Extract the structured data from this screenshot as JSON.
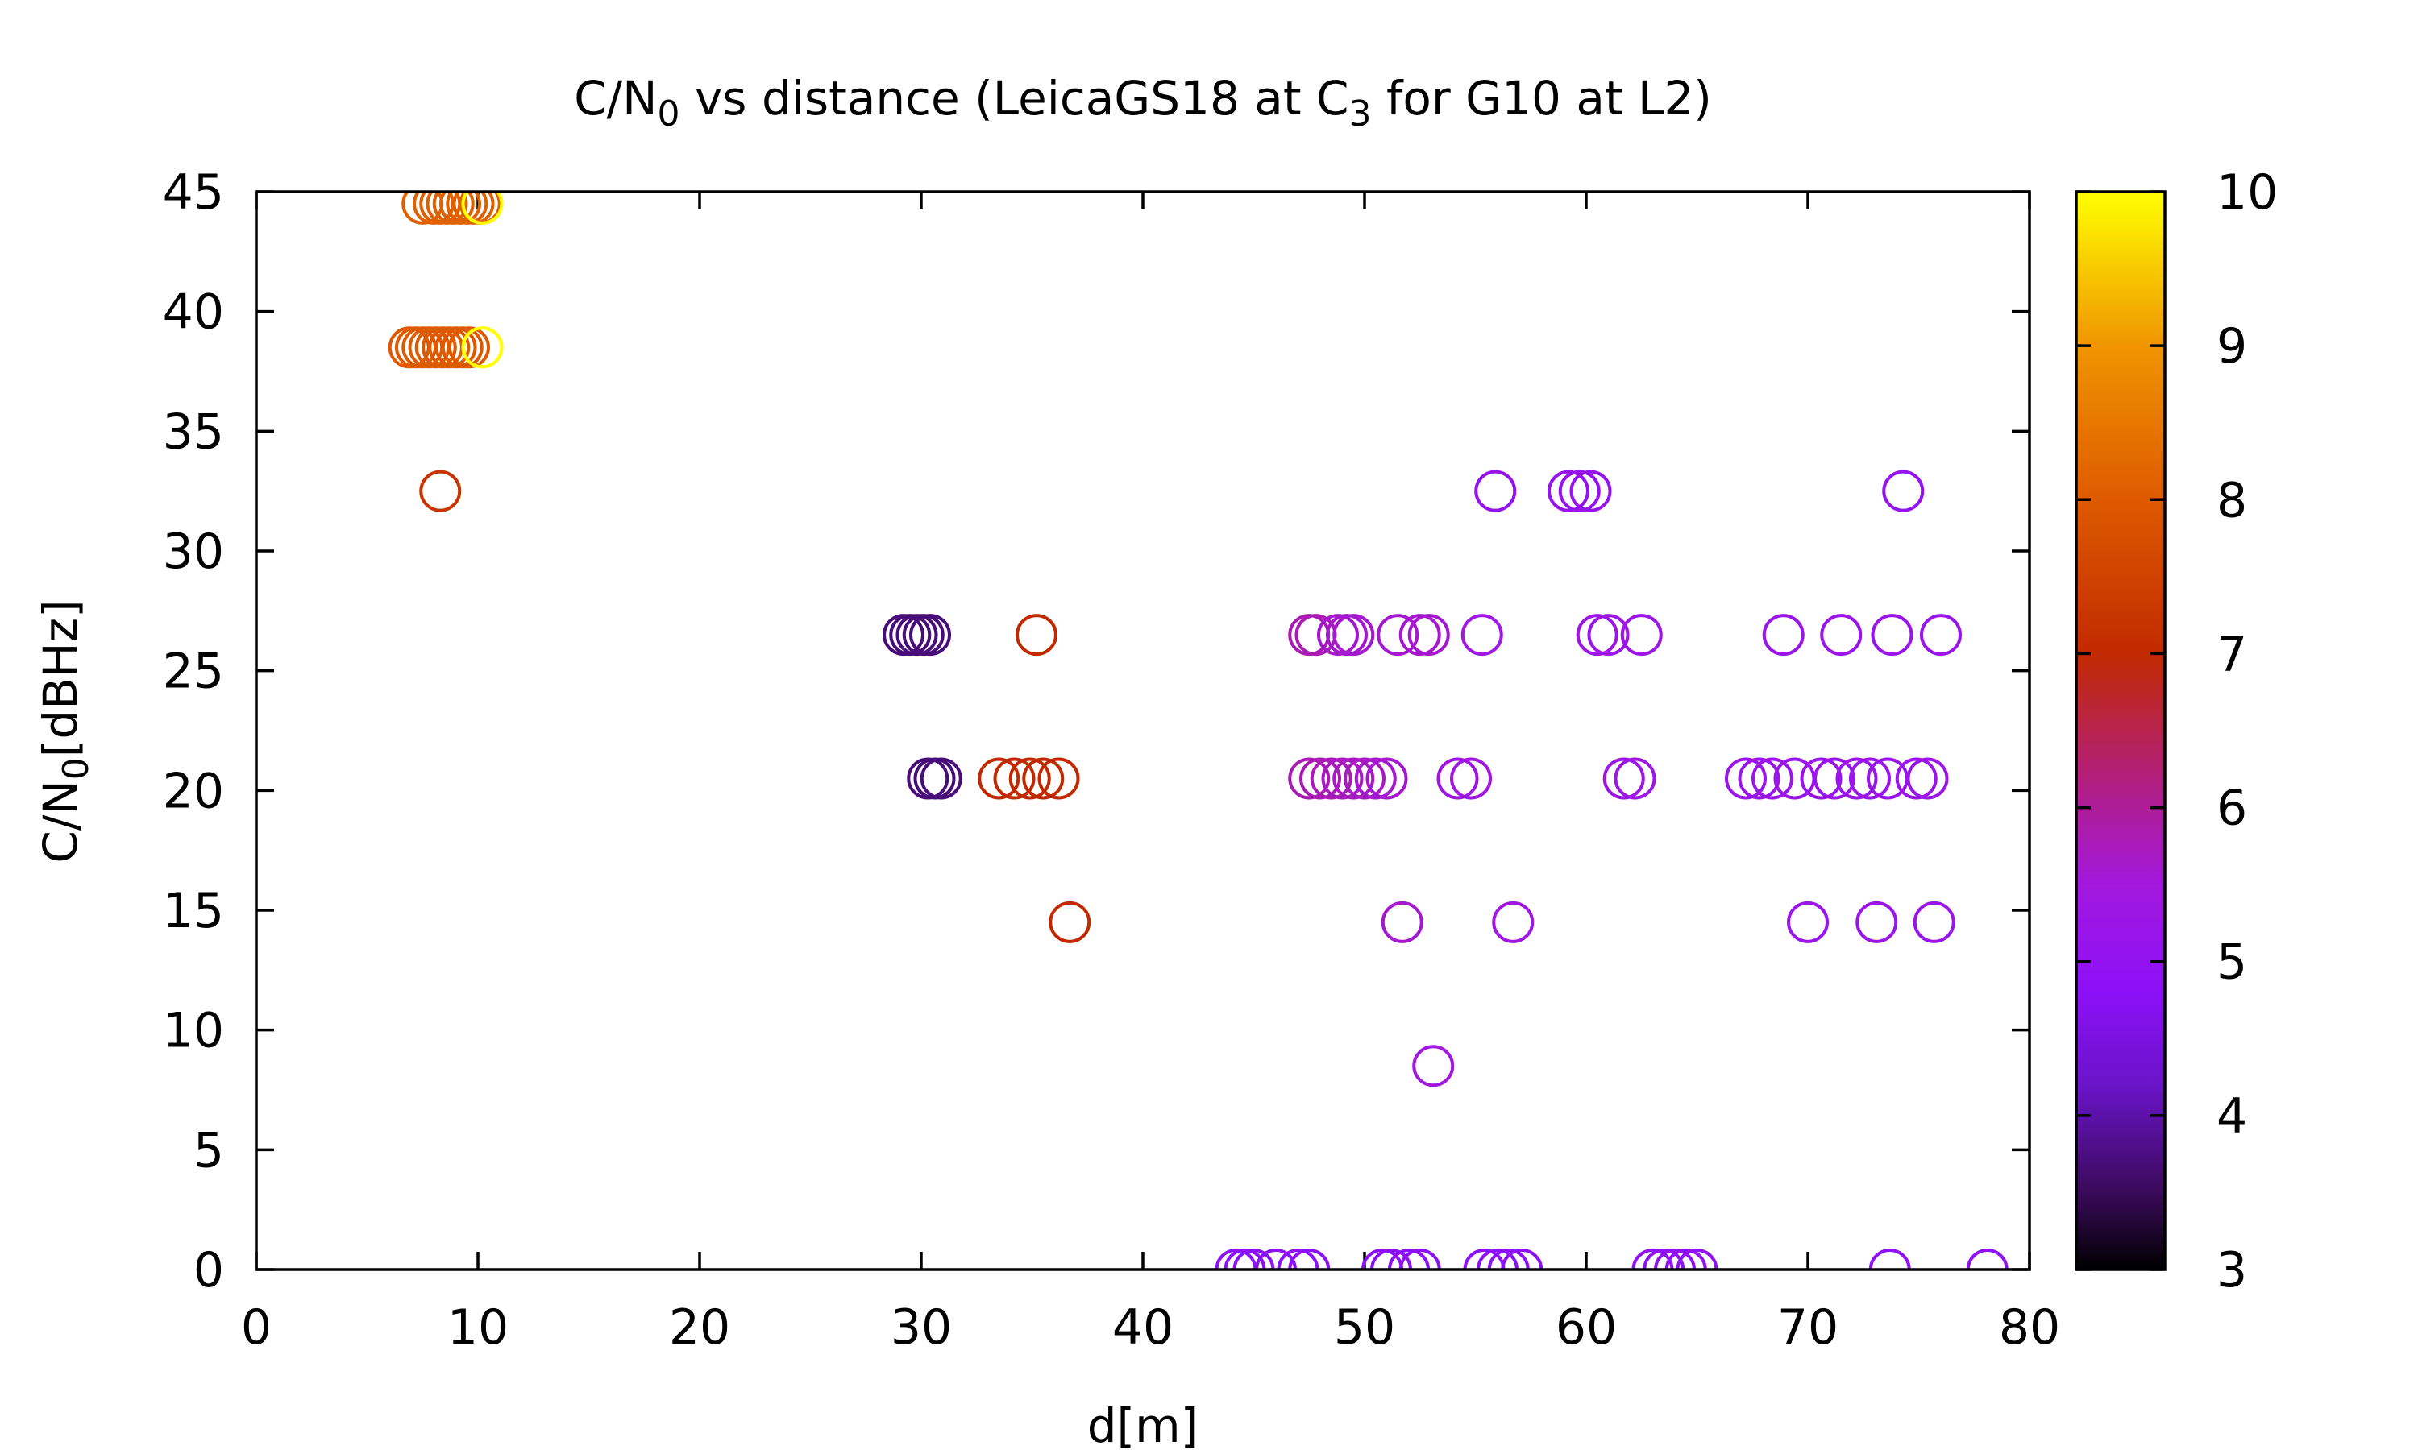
{
  "chart_data": {
    "type": "scatter",
    "title": {
      "prefix": "C/N",
      "prefix_sub": "0",
      "middle": " vs distance (LeicaGS18 at C",
      "middle_sub": "3",
      "suffix": " for G10 at L2)"
    },
    "xlabel": "d[m]",
    "ylabel": {
      "main": "C/N",
      "sub": "0",
      "rest": "[dBHz]"
    },
    "xlim": [
      0,
      80
    ],
    "ylim": [
      0,
      45
    ],
    "xticks": [
      0,
      10,
      20,
      30,
      40,
      50,
      60,
      70,
      80
    ],
    "yticks": [
      0,
      5,
      10,
      15,
      20,
      25,
      30,
      35,
      40,
      45
    ],
    "colorbar": {
      "range": [
        3,
        10
      ],
      "ticks": [
        3,
        4,
        5,
        6,
        7,
        8,
        9,
        10
      ],
      "palette": "gnuplot-black-purple-red-orange-yellow",
      "stops": [
        {
          "v": 3.0,
          "color": "#000000"
        },
        {
          "v": 3.5,
          "color": "#3a0a5a"
        },
        {
          "v": 4.2,
          "color": "#6a14c8"
        },
        {
          "v": 4.8,
          "color": "#8c10f8"
        },
        {
          "v": 5.5,
          "color": "#a218dc"
        },
        {
          "v": 6.1,
          "color": "#b01e8a"
        },
        {
          "v": 7.0,
          "color": "#c12a00"
        },
        {
          "v": 8.0,
          "color": "#de5a00"
        },
        {
          "v": 9.0,
          "color": "#f09500"
        },
        {
          "v": 10.0,
          "color": "#ffff00"
        }
      ]
    },
    "series": [
      {
        "points": [
          [
            7.5,
            44.5,
            8.1
          ],
          [
            8.0,
            44.5,
            8.1
          ],
          [
            8.3,
            44.5,
            8.1
          ],
          [
            8.6,
            44.5,
            8.1
          ],
          [
            8.9,
            44.5,
            8.1
          ],
          [
            9.2,
            44.5,
            8.1
          ],
          [
            9.5,
            44.5,
            8.1
          ],
          [
            9.8,
            44.5,
            8.1
          ],
          [
            10.1,
            44.5,
            8.1
          ],
          [
            10.2,
            44.5,
            10
          ],
          [
            6.9,
            38.5,
            8.0
          ],
          [
            7.2,
            38.5,
            8.0
          ],
          [
            7.5,
            38.5,
            8.0
          ],
          [
            7.8,
            38.5,
            8.0
          ],
          [
            8.1,
            38.5,
            8.0
          ],
          [
            8.4,
            38.5,
            8.0
          ],
          [
            8.7,
            38.5,
            8.0
          ],
          [
            9.0,
            38.5,
            8.0
          ],
          [
            9.3,
            38.5,
            8.0
          ],
          [
            9.6,
            38.5,
            8.0
          ],
          [
            10.2,
            38.5,
            10
          ],
          [
            8.3,
            32.5,
            7.2
          ],
          [
            29.2,
            26.5,
            3.7
          ],
          [
            29.5,
            26.5,
            3.7
          ],
          [
            29.8,
            26.5,
            3.7
          ],
          [
            30.1,
            26.5,
            3.7
          ],
          [
            30.4,
            26.5,
            3.7
          ],
          [
            35.2,
            26.5,
            7.0
          ],
          [
            30.3,
            20.5,
            3.7
          ],
          [
            30.6,
            20.5,
            3.7
          ],
          [
            30.9,
            20.5,
            3.7
          ],
          [
            33.5,
            20.5,
            7.0
          ],
          [
            34.2,
            20.5,
            7.0
          ],
          [
            34.9,
            20.5,
            7.0
          ],
          [
            35.5,
            20.5,
            7.0
          ],
          [
            36.2,
            20.5,
            7.0
          ],
          [
            36.7,
            14.5,
            7.0
          ],
          [
            47.5,
            26.5,
            5.8
          ],
          [
            47.8,
            26.5,
            5.8
          ],
          [
            48.8,
            26.5,
            5.6
          ],
          [
            49.2,
            26.5,
            5.6
          ],
          [
            49.5,
            26.5,
            5.6
          ],
          [
            51.5,
            26.5,
            5.6
          ],
          [
            52.5,
            26.5,
            5.6
          ],
          [
            52.9,
            26.5,
            5.6
          ],
          [
            55.3,
            26.5,
            5.4
          ],
          [
            60.5,
            26.5,
            5.3
          ],
          [
            61.0,
            26.5,
            5.3
          ],
          [
            62.5,
            26.5,
            5.3
          ],
          [
            68.9,
            26.5,
            5.2
          ],
          [
            71.5,
            26.5,
            5.2
          ],
          [
            73.8,
            26.5,
            5.2
          ],
          [
            76.0,
            26.5,
            5.2
          ],
          [
            47.5,
            20.5,
            5.8
          ],
          [
            48.0,
            20.5,
            5.8
          ],
          [
            48.5,
            20.5,
            5.8
          ],
          [
            49.0,
            20.5,
            5.7
          ],
          [
            49.5,
            20.5,
            5.7
          ],
          [
            50.0,
            20.5,
            5.7
          ],
          [
            50.5,
            20.5,
            5.6
          ],
          [
            51.0,
            20.5,
            5.6
          ],
          [
            54.2,
            20.5,
            5.4
          ],
          [
            54.8,
            20.5,
            5.4
          ],
          [
            61.7,
            20.5,
            5.3
          ],
          [
            62.2,
            20.5,
            5.3
          ],
          [
            67.2,
            20.5,
            5.2
          ],
          [
            67.8,
            20.5,
            5.2
          ],
          [
            68.4,
            20.5,
            5.2
          ],
          [
            69.4,
            20.5,
            5.2
          ],
          [
            70.6,
            20.5,
            5.2
          ],
          [
            71.2,
            20.5,
            5.2
          ],
          [
            72.2,
            20.5,
            5.2
          ],
          [
            72.8,
            20.5,
            5.2
          ],
          [
            73.6,
            20.5,
            5.2
          ],
          [
            74.9,
            20.5,
            5.2
          ],
          [
            75.4,
            20.5,
            5.2
          ],
          [
            51.7,
            14.5,
            5.6
          ],
          [
            56.7,
            14.5,
            5.4
          ],
          [
            70.0,
            14.5,
            5.2
          ],
          [
            73.1,
            14.5,
            5.2
          ],
          [
            75.7,
            14.5,
            5.2
          ],
          [
            53.1,
            8.5,
            5.5
          ],
          [
            55.9,
            32.5,
            5.1
          ],
          [
            59.2,
            32.5,
            5.1
          ],
          [
            59.7,
            32.5,
            5.1
          ],
          [
            60.2,
            32.5,
            5.1
          ],
          [
            74.3,
            32.5,
            5.1
          ],
          [
            44.2,
            0,
            4.8
          ],
          [
            44.6,
            0,
            4.8
          ],
          [
            45.0,
            0,
            4.8
          ],
          [
            46.0,
            0,
            4.8
          ],
          [
            47.0,
            0,
            4.8
          ],
          [
            47.5,
            0,
            4.8
          ],
          [
            50.8,
            0,
            4.8
          ],
          [
            51.2,
            0,
            4.8
          ],
          [
            52.0,
            0,
            4.8
          ],
          [
            52.5,
            0,
            4.8
          ],
          [
            55.4,
            0,
            4.8
          ],
          [
            56.0,
            0,
            4.8
          ],
          [
            56.5,
            0,
            4.8
          ],
          [
            57.1,
            0,
            4.8
          ],
          [
            63.0,
            0,
            4.9
          ],
          [
            63.5,
            0,
            4.9
          ],
          [
            64.0,
            0,
            4.9
          ],
          [
            64.5,
            0,
            4.9
          ],
          [
            65.0,
            0,
            4.9
          ],
          [
            73.7,
            0,
            4.9
          ],
          [
            78.1,
            0,
            4.9
          ]
        ]
      }
    ]
  }
}
